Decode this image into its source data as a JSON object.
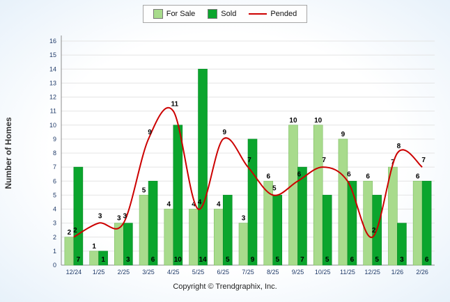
{
  "chart_data": {
    "type": "bar",
    "title": "",
    "xlabel": "",
    "ylabel": "Number of Homes",
    "categories": [
      "12/24",
      "1/25",
      "2/25",
      "3/25",
      "4/25",
      "5/25",
      "6/25",
      "7/25",
      "8/25",
      "9/25",
      "10/25",
      "11/25",
      "12/25",
      "1/26",
      "2/26"
    ],
    "series": [
      {
        "name": "For Sale",
        "type": "bar",
        "values": [
          2,
          1,
          3,
          5,
          4,
          4,
          4,
          3,
          6,
          10,
          10,
          9,
          6,
          7,
          6
        ]
      },
      {
        "name": "Sold",
        "type": "bar",
        "values": [
          7,
          1,
          3,
          6,
          10,
          14,
          5,
          9,
          5,
          7,
          5,
          6,
          5,
          3,
          6
        ]
      },
      {
        "name": "Pended",
        "type": "line",
        "values": [
          2,
          3,
          3,
          9,
          11,
          4,
          9,
          7,
          5,
          6,
          7,
          6,
          2,
          8,
          7
        ]
      }
    ],
    "ylim": [
      0,
      16
    ],
    "ytick_step": 1,
    "grid": "horizontal",
    "legend_position": "top-center"
  },
  "colors": {
    "for_sale": "#A8DB8C",
    "for_sale_border": "#7DBE62",
    "sold": "#0BA52D",
    "sold_border": "#078A24",
    "pended": "#CC0000",
    "axis_text": "#1F3A68",
    "grid": "#E4E4E4",
    "axis_line": "#8C8C8C",
    "value_label": "#000000",
    "ylabel_color": "#333333"
  },
  "footer": "Copyright © Trendgraphix, Inc."
}
